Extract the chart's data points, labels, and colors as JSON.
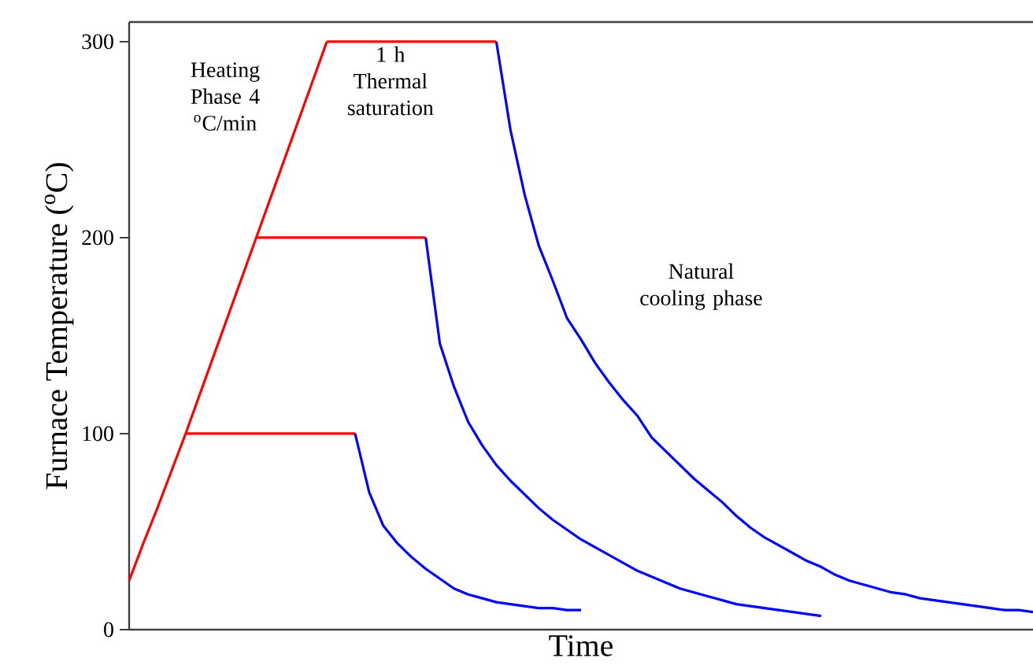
{
  "chart_data": {
    "type": "line",
    "xlabel": "Time",
    "ylabel": "Furnace Temperature ($^{o}$C)",
    "categories": [
      null,
      null,
      null,
      null,
      null,
      null,
      null,
      null,
      null,
      null,
      null,
      null,
      null,
      null,
      null,
      null,
      null,
      null,
      null,
      null,
      null,
      null,
      null,
      null,
      null,
      null,
      null,
      null,
      null,
      null,
      null,
      null,
      null,
      null,
      null,
      null,
      null,
      null,
      null,
      null,
      null,
      null,
      null,
      null,
      null,
      null,
      null,
      null,
      null,
      null,
      null,
      null,
      null,
      null,
      null,
      null,
      null,
      null,
      null,
      null,
      null,
      null,
      null,
      null,
      null
    ],
    "ylim": [
      0,
      310
    ],
    "yticks": [
      0,
      100,
      200,
      300
    ],
    "grid": false,
    "marker": "none",
    "line_style": "solid",
    "tick_labels": "y",
    "annotations": [
      "Heating Phase 4 $^{o}$C/min",
      "1 h Thermal saturation",
      "Natural cooling phase"
    ],
    "series": [
      {
        "color": "#ff0000",
        "values": [
          25,
          44,
          62,
          81,
          100,
          120,
          140,
          160,
          180,
          200,
          220,
          240,
          260,
          280,
          300,
          null,
          null,
          null,
          null,
          null,
          null,
          null,
          null,
          null,
          null,
          null,
          null,
          null,
          null,
          null,
          null,
          null,
          null,
          null,
          null,
          null,
          null,
          null,
          null,
          null,
          null,
          null,
          null,
          null,
          null,
          null,
          null,
          null,
          null,
          null,
          null,
          null,
          null,
          null,
          null,
          null,
          null,
          null,
          null,
          null,
          null,
          null,
          null,
          null,
          null
        ]
      },
      {
        "color": "#ff0000",
        "values": [
          null,
          null,
          null,
          null,
          100,
          100,
          100,
          100,
          100,
          100,
          100,
          100,
          100,
          100,
          100,
          100,
          100,
          null,
          null,
          null,
          null,
          null,
          null,
          null,
          null,
          null,
          null,
          null,
          null,
          null,
          null,
          null,
          null,
          null,
          null,
          null,
          null,
          null,
          null,
          null,
          null,
          null,
          null,
          null,
          null,
          null,
          null,
          null,
          null,
          null,
          null,
          null,
          null,
          null,
          null,
          null,
          null,
          null,
          null,
          null,
          null,
          null,
          null,
          null,
          null
        ]
      },
      {
        "color": "#ff0000",
        "values": [
          null,
          null,
          null,
          null,
          null,
          null,
          null,
          null,
          null,
          200,
          200,
          200,
          200,
          200,
          200,
          200,
          200,
          200,
          200,
          200,
          200,
          200,
          null,
          null,
          null,
          null,
          null,
          null,
          null,
          null,
          null,
          null,
          null,
          null,
          null,
          null,
          null,
          null,
          null,
          null,
          null,
          null,
          null,
          null,
          null,
          null,
          null,
          null,
          null,
          null,
          null,
          null,
          null,
          null,
          null,
          null,
          null,
          null,
          null,
          null,
          null,
          null,
          null,
          null,
          null
        ]
      },
      {
        "color": "#ff0000",
        "values": [
          null,
          null,
          null,
          null,
          null,
          null,
          null,
          null,
          null,
          null,
          null,
          null,
          null,
          null,
          300,
          300,
          300,
          300,
          300,
          300,
          300,
          300,
          300,
          300,
          300,
          300,
          300,
          null,
          null,
          null,
          null,
          null,
          null,
          null,
          null,
          null,
          null,
          null,
          null,
          null,
          null,
          null,
          null,
          null,
          null,
          null,
          null,
          null,
          null,
          null,
          null,
          null,
          null,
          null,
          null,
          null,
          null,
          null,
          null,
          null,
          null,
          null,
          null,
          null,
          null
        ]
      },
      {
        "color": "#0000ff",
        "values": [
          null,
          null,
          null,
          null,
          null,
          null,
          null,
          null,
          null,
          null,
          null,
          null,
          null,
          null,
          null,
          null,
          100,
          70,
          53,
          44,
          37,
          31,
          26,
          21,
          18,
          16,
          14,
          13,
          12,
          11,
          11,
          10,
          10,
          null,
          null,
          null,
          null,
          null,
          null,
          null,
          null,
          null,
          null,
          null,
          null,
          null,
          null,
          null,
          null,
          null,
          null,
          null,
          null,
          null,
          null,
          null,
          null,
          null,
          null,
          null,
          null,
          null,
          null,
          null,
          null
        ]
      },
      {
        "color": "#0000ff",
        "values": [
          null,
          null,
          null,
          null,
          null,
          null,
          null,
          null,
          null,
          null,
          null,
          null,
          null,
          null,
          null,
          null,
          null,
          null,
          null,
          null,
          null,
          200,
          146,
          124,
          106,
          94,
          84,
          76,
          69,
          62,
          56,
          51,
          46,
          42,
          38,
          34,
          30,
          27,
          24,
          21,
          19,
          17,
          15,
          13,
          12,
          11,
          10,
          9,
          8,
          7,
          null,
          null,
          null,
          null,
          null,
          null,
          null,
          null,
          null,
          null,
          null,
          null,
          null,
          null,
          null
        ]
      },
      {
        "color": "#0000ff",
        "values": [
          null,
          null,
          null,
          null,
          null,
          null,
          null,
          null,
          null,
          null,
          null,
          null,
          null,
          null,
          null,
          null,
          null,
          null,
          null,
          null,
          null,
          null,
          null,
          null,
          null,
          null,
          300,
          255,
          222,
          196,
          178,
          159,
          148,
          136,
          126,
          117,
          109,
          98,
          91,
          84,
          77,
          71,
          65,
          58,
          52,
          47,
          43,
          39,
          35,
          32,
          28,
          25,
          23,
          21,
          19,
          18,
          16,
          15,
          14,
          13,
          12,
          11,
          10,
          10,
          9
        ]
      }
    ]
  }
}
